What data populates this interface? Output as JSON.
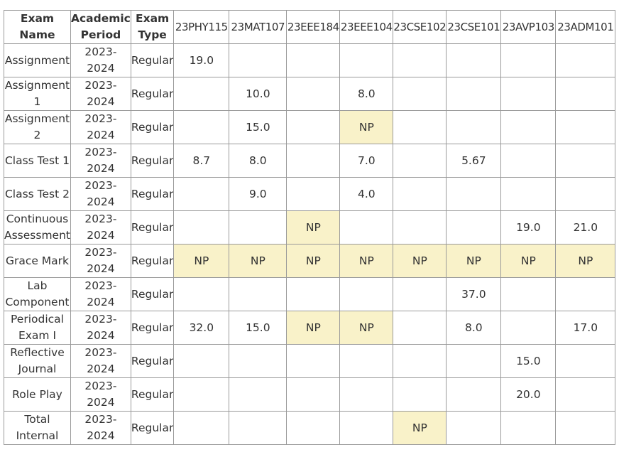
{
  "headers": {
    "exam_name": "Exam Name",
    "academic_period": "Academic Period",
    "exam_type": "Exam Type",
    "courses": [
      "23PHY115",
      "23MAT107",
      "23EEE184",
      "23EEE104",
      "23CSE102",
      "23CSE101",
      "23AVP103",
      "23ADM101"
    ]
  },
  "highlight_color": "#f9f2c9",
  "rows": [
    {
      "exam_name": "Assignment",
      "period": "2023- 2024",
      "type": "Regular",
      "cells": [
        "19.0",
        "",
        "",
        "",
        "",
        "",
        "",
        ""
      ]
    },
    {
      "exam_name": "Assignment 1",
      "period": "2023- 2024",
      "type": "Regular",
      "cells": [
        "",
        "10.0",
        "",
        "8.0",
        "",
        "",
        "",
        ""
      ]
    },
    {
      "exam_name": "Assignment 2",
      "period": "2023- 2024",
      "type": "Regular",
      "cells": [
        "",
        "15.0",
        "",
        "NP",
        "",
        "",
        "",
        ""
      ]
    },
    {
      "exam_name": "Class Test 1",
      "period": "2023- 2024",
      "type": "Regular",
      "cells": [
        "8.7",
        "8.0",
        "",
        "7.0",
        "",
        "5.67",
        "",
        ""
      ]
    },
    {
      "exam_name": "Class Test 2",
      "period": "2023- 2024",
      "type": "Regular",
      "cells": [
        "",
        "9.0",
        "",
        "4.0",
        "",
        "",
        "",
        ""
      ]
    },
    {
      "exam_name": "Continuous Assessment",
      "period": "2023- 2024",
      "type": "Regular",
      "cells": [
        "",
        "",
        "NP",
        "",
        "",
        "",
        "19.0",
        "21.0"
      ]
    },
    {
      "exam_name": "Grace Mark",
      "period": "2023- 2024",
      "type": "Regular",
      "cells": [
        "NP",
        "NP",
        "NP",
        "NP",
        "NP",
        "NP",
        "NP",
        "NP"
      ]
    },
    {
      "exam_name": "Lab Component",
      "period": "2023- 2024",
      "type": "Regular",
      "cells": [
        "",
        "",
        "",
        "",
        "",
        "37.0",
        "",
        ""
      ]
    },
    {
      "exam_name": "Periodical Exam I",
      "period": "2023- 2024",
      "type": "Regular",
      "cells": [
        "32.0",
        "15.0",
        "NP",
        "NP",
        "",
        "8.0",
        "",
        "17.0"
      ]
    },
    {
      "exam_name": "Reflective Journal",
      "period": "2023- 2024",
      "type": "Regular",
      "cells": [
        "",
        "",
        "",
        "",
        "",
        "",
        "15.0",
        ""
      ]
    },
    {
      "exam_name": "Role Play",
      "period": "2023- 2024",
      "type": "Regular",
      "cells": [
        "",
        "",
        "",
        "",
        "",
        "",
        "20.0",
        ""
      ]
    },
    {
      "exam_name": "Total Internal",
      "period": "2023- 2024",
      "type": "Regular",
      "cells": [
        "",
        "",
        "",
        "",
        "NP",
        "",
        "",
        ""
      ]
    }
  ]
}
